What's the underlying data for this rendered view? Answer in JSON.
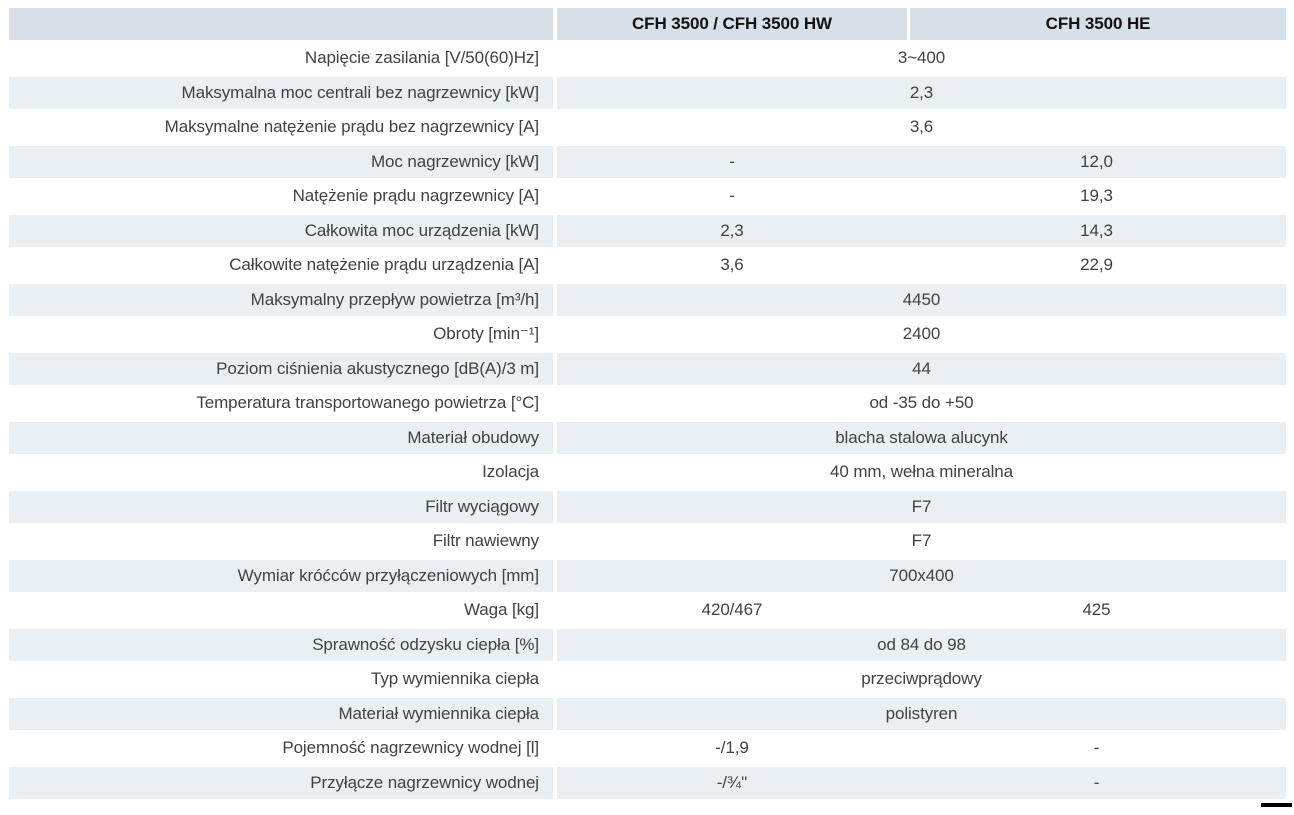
{
  "colors": {
    "header_bg": "#d7dfe7",
    "stripe_bg": "#eaeff4",
    "label_text": "#3f4245",
    "header_text": "#121212",
    "divider": "#ffffff",
    "footer_rule": "#000000"
  },
  "table": {
    "header": {
      "col1": "CFH 3500 / CFH 3500 HW",
      "col2": "CFH 3500 HE"
    },
    "rows": [
      {
        "label": "Napięcie zasilania [V/50(60)Hz]",
        "span": "3~400"
      },
      {
        "label": "Maksymalna moc centrali bez nagrzewnicy [kW]",
        "span": "2,3"
      },
      {
        "label": "Maksymalne natężenie prądu bez nagrzewnicy [A]",
        "span": "3,6"
      },
      {
        "label": "Moc nagrzewnicy [kW]",
        "col1": "-",
        "col2": "12,0"
      },
      {
        "label": "Natężenie prądu nagrzewnicy [A]",
        "col1": "-",
        "col2": "19,3"
      },
      {
        "label": "Całkowita moc urządzenia [kW]",
        "col1": "2,3",
        "col2": "14,3"
      },
      {
        "label": "Całkowite natężenie prądu urządzenia [A]",
        "col1": "3,6",
        "col2": "22,9"
      },
      {
        "label": "Maksymalny przepływ powietrza [m³/h]",
        "span": "4450"
      },
      {
        "label": "Obroty [min⁻¹]",
        "span": "2400"
      },
      {
        "label": "Poziom ciśnienia akustycznego [dB(A)/3 m]",
        "span": "44"
      },
      {
        "label": "Temperatura transportowanego powietrza [°C]",
        "span": "od -35 do +50"
      },
      {
        "label": "Materiał obudowy",
        "span": "blacha stalowa alucynk"
      },
      {
        "label": "Izolacja",
        "span": "40 mm, wełna mineralna"
      },
      {
        "label": "Filtr wyciągowy",
        "span": "F7"
      },
      {
        "label": "Filtr nawiewny",
        "span": "F7"
      },
      {
        "label": "Wymiar króćców przyłączeniowych [mm]",
        "span": "700x400"
      },
      {
        "label": "Waga [kg]",
        "col1": "420/467",
        "col2": "425"
      },
      {
        "label": "Sprawność odzysku ciepła [%]",
        "span": "od 84 do 98"
      },
      {
        "label": "Typ wymiennika ciepła",
        "span": "przeciwprądowy"
      },
      {
        "label": "Materiał wymiennika ciepła",
        "span": "polistyren"
      },
      {
        "label": "Pojemność nagrzewnicy wodnej [l]",
        "col1": "-/1,9",
        "col2": "-"
      },
      {
        "label": "Przyłącze nagrzewnicy wodnej",
        "col1": "-/¾''",
        "col2": "-"
      }
    ]
  }
}
